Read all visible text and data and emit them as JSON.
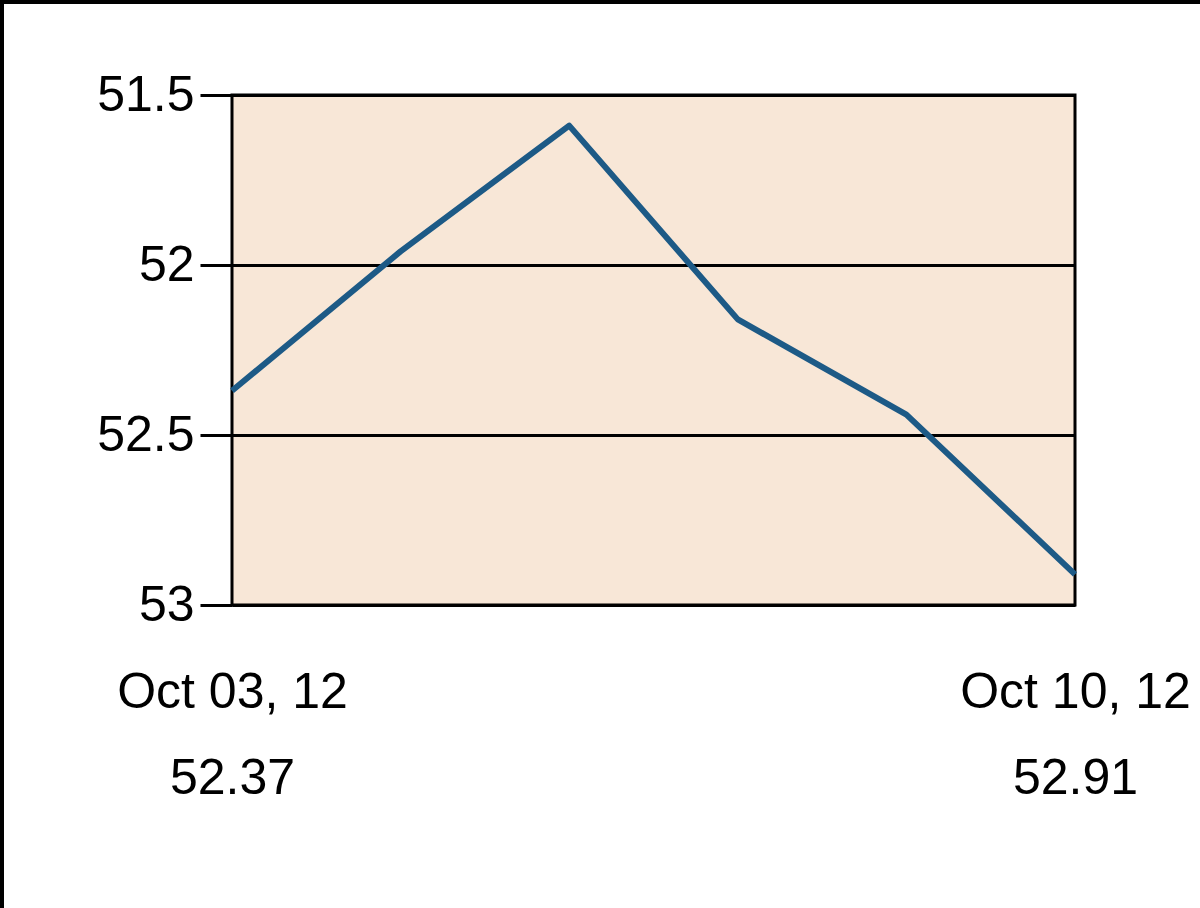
{
  "chart_data": {
    "type": "line",
    "categories": [
      "Oct 03, 12",
      null,
      null,
      null,
      null,
      "Oct 10, 12"
    ],
    "series": [
      {
        "color": "#1d5a86",
        "values": [
          52.37,
          51.96,
          51.59,
          52.16,
          52.44,
          52.91
        ],
        "value_labels": [
          "52.37",
          null,
          null,
          null,
          null,
          "52.91"
        ]
      }
    ],
    "ylim": [
      53,
      51.5
    ],
    "yticks": [
      51.5,
      52,
      52.5,
      53
    ],
    "grid": "y",
    "marker": "none",
    "line_style": "solid"
  }
}
